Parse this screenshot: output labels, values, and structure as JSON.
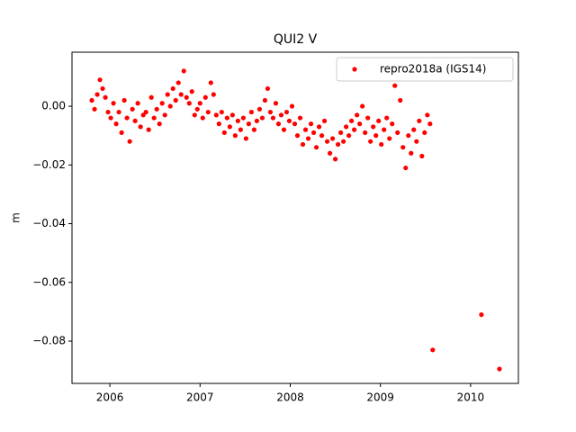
{
  "chart_data": {
    "type": "scatter",
    "title": "QUI2 V",
    "ylabel": "m",
    "legend": "upper right",
    "grid": false,
    "xlim": [
      2005.58,
      2010.53
    ],
    "xticks": [
      2006,
      2007,
      2008,
      2009,
      2010
    ],
    "ylim": [
      -0.0944,
      0.0184
    ],
    "yticks": [
      {
        "value": 0,
        "label": "0.00"
      },
      {
        "value": -0.02,
        "label": "−0.02"
      },
      {
        "value": -0.04,
        "label": "−0.04"
      },
      {
        "value": -0.06,
        "label": "−0.06"
      },
      {
        "value": -0.08,
        "label": "−0.08"
      }
    ],
    "series": [
      {
        "name": "repro2018a (IGS14)",
        "color": "#ff0000",
        "x": [
          2005.8,
          2005.83,
          2005.86,
          2005.89,
          2005.92,
          2005.95,
          2005.98,
          2006.01,
          2006.04,
          2006.07,
          2006.1,
          2006.13,
          2006.16,
          2006.19,
          2006.22,
          2006.25,
          2006.28,
          2006.31,
          2006.34,
          2006.37,
          2006.4,
          2006.43,
          2006.46,
          2006.49,
          2006.52,
          2006.55,
          2006.58,
          2006.61,
          2006.64,
          2006.67,
          2006.7,
          2006.73,
          2006.76,
          2006.79,
          2006.82,
          2006.85,
          2006.88,
          2006.91,
          2006.94,
          2006.97,
          2007.0,
          2007.03,
          2007.06,
          2007.09,
          2007.12,
          2007.15,
          2007.18,
          2007.21,
          2007.24,
          2007.27,
          2007.3,
          2007.33,
          2007.36,
          2007.39,
          2007.42,
          2007.45,
          2007.48,
          2007.51,
          2007.54,
          2007.57,
          2007.6,
          2007.63,
          2007.66,
          2007.69,
          2007.72,
          2007.75,
          2007.78,
          2007.81,
          2007.84,
          2007.87,
          2007.9,
          2007.93,
          2007.96,
          2007.99,
          2008.02,
          2008.05,
          2008.08,
          2008.11,
          2008.14,
          2008.17,
          2008.2,
          2008.23,
          2008.26,
          2008.29,
          2008.32,
          2008.35,
          2008.38,
          2008.41,
          2008.44,
          2008.47,
          2008.5,
          2008.53,
          2008.56,
          2008.59,
          2008.62,
          2008.65,
          2008.68,
          2008.71,
          2008.74,
          2008.77,
          2008.8,
          2008.83,
          2008.86,
          2008.89,
          2008.92,
          2008.95,
          2008.98,
          2009.01,
          2009.04,
          2009.07,
          2009.1,
          2009.13,
          2009.16,
          2009.19,
          2009.22,
          2009.25,
          2009.28,
          2009.31,
          2009.34,
          2009.37,
          2009.4,
          2009.43,
          2009.46,
          2009.49,
          2009.52,
          2009.55,
          2009.58,
          2010.12,
          2010.32
        ],
        "values": [
          0.002,
          -0.001,
          0.004,
          0.009,
          0.006,
          0.003,
          -0.002,
          -0.004,
          0.001,
          -0.006,
          -0.002,
          -0.009,
          0.002,
          -0.004,
          -0.012,
          -0.001,
          -0.005,
          0.001,
          -0.007,
          -0.003,
          -0.002,
          -0.008,
          0.003,
          -0.004,
          -0.001,
          -0.006,
          0.001,
          -0.003,
          0.004,
          0.0,
          0.006,
          0.002,
          0.008,
          0.004,
          0.012,
          0.003,
          0.001,
          0.005,
          -0.003,
          -0.001,
          0.001,
          -0.004,
          0.003,
          -0.002,
          0.008,
          0.004,
          -0.003,
          -0.006,
          -0.002,
          -0.009,
          -0.004,
          -0.007,
          -0.003,
          -0.01,
          -0.005,
          -0.008,
          -0.004,
          -0.011,
          -0.006,
          -0.002,
          -0.008,
          -0.005,
          -0.001,
          -0.004,
          0.002,
          0.006,
          -0.002,
          -0.004,
          0.001,
          -0.006,
          -0.003,
          -0.008,
          -0.002,
          -0.005,
          0.0,
          -0.006,
          -0.01,
          -0.004,
          -0.013,
          -0.008,
          -0.011,
          -0.006,
          -0.009,
          -0.014,
          -0.007,
          -0.01,
          -0.005,
          -0.012,
          -0.016,
          -0.011,
          -0.018,
          -0.013,
          -0.009,
          -0.012,
          -0.007,
          -0.01,
          -0.005,
          -0.008,
          -0.003,
          -0.006,
          0.0,
          -0.009,
          -0.004,
          -0.012,
          -0.007,
          -0.01,
          -0.005,
          -0.013,
          -0.008,
          -0.004,
          -0.011,
          -0.006,
          0.007,
          -0.009,
          0.002,
          -0.014,
          -0.021,
          -0.01,
          -0.016,
          -0.008,
          -0.012,
          -0.005,
          -0.017,
          -0.009,
          -0.003,
          -0.006,
          -0.083,
          -0.071,
          -0.0895
        ]
      }
    ]
  }
}
